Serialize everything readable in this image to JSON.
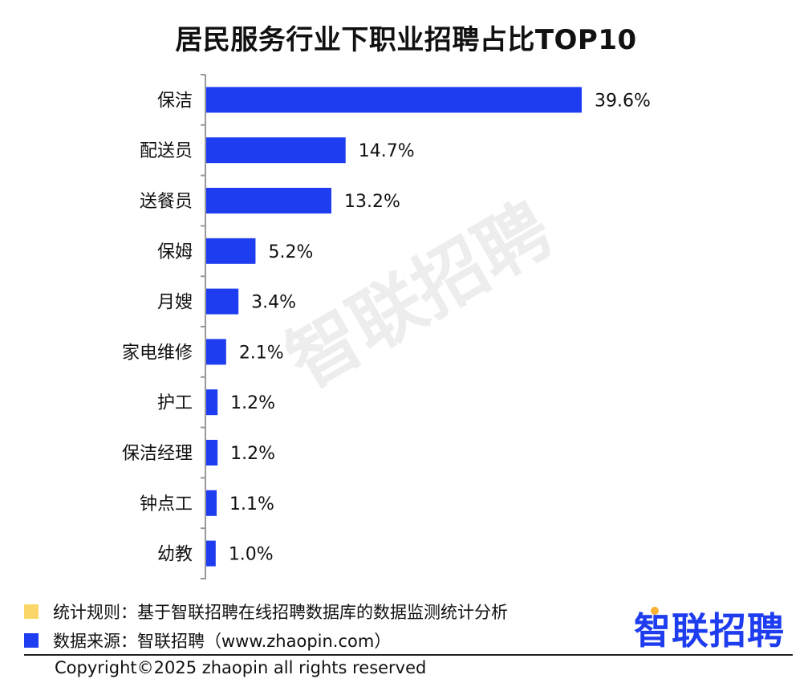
{
  "chart_data": {
    "type": "bar",
    "orientation": "horizontal",
    "title": "居民服务行业下职业招聘占比TOP10",
    "categories": [
      "保洁",
      "配送员",
      "送餐员",
      "保姆",
      "月嫂",
      "家电维修",
      "护工",
      "保洁经理",
      "钟点工",
      "幼教"
    ],
    "values": [
      39.6,
      14.7,
      13.2,
      5.2,
      3.4,
      2.1,
      1.2,
      1.2,
      1.1,
      1.0
    ],
    "value_labels": [
      "39.6%",
      "14.7%",
      "13.2%",
      "5.2%",
      "3.4%",
      "2.1%",
      "1.2%",
      "1.2%",
      "1.1%",
      "1.0%"
    ],
    "unit": "%",
    "bar_color": "#1f3df0",
    "grid": false,
    "xlabel": "",
    "ylabel": ""
  },
  "legend": [
    {
      "swatch_color": "#f9d667",
      "text": "统计规则：基于智联招聘在线招聘数据库的数据监测统计分析"
    },
    {
      "swatch_color": "#1f3df0",
      "text": "数据来源：智联招聘（www.zhaopin.com）"
    }
  ],
  "brand": {
    "logo_text": "智联招聘",
    "logo_color": "#1f3df0",
    "dot_color": "#f9b233",
    "watermark_text": "智联招聘"
  },
  "copyright": "Copyright©2025 zhaopin all rights reserved"
}
